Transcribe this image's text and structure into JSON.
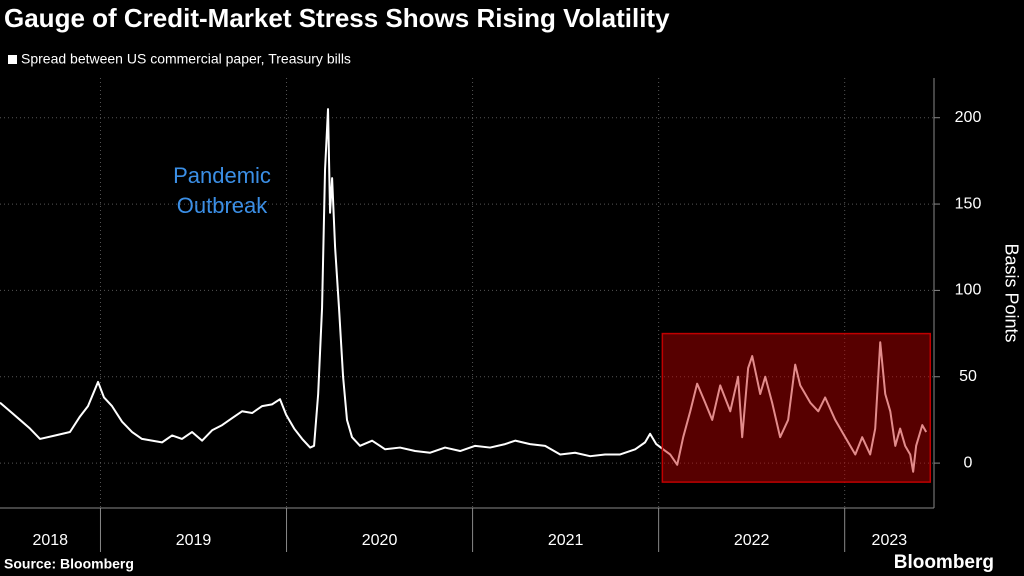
{
  "chart_data": {
    "type": "line",
    "title": "Gauge of Credit-Market Stress Shows Rising Volatility",
    "y_label": "Basis Points",
    "source": "Source: Bloomberg",
    "logo": "Bloomberg",
    "annotation": [
      "Pandemic",
      "Outbreak"
    ],
    "xlim": [
      2018.46,
      2023.48
    ],
    "xticks": [
      2019,
      2020,
      2021,
      2022,
      2023
    ],
    "year_labels": [
      2018,
      2019,
      2020,
      2021,
      2022,
      2023
    ],
    "ylim": [
      -26,
      223
    ],
    "yticks": [
      0,
      50,
      100,
      150,
      200
    ],
    "grid": true,
    "highlight": {
      "x": [
        2022.02,
        2023.46
      ],
      "y": [
        -11,
        75
      ],
      "color": "#c00000"
    },
    "x": [
      2018.46,
      2018.514,
      2018.568,
      2018.621,
      2018.675,
      2018.756,
      2018.836,
      2018.89,
      2018.933,
      2018.987,
      2019.019,
      2019.062,
      2019.116,
      2019.17,
      2019.223,
      2019.277,
      2019.331,
      2019.385,
      2019.438,
      2019.492,
      2019.546,
      2019.6,
      2019.654,
      2019.707,
      2019.761,
      2019.815,
      2019.869,
      2019.922,
      2019.965,
      2019.998,
      2020.041,
      2020.084,
      2020.127,
      2020.148,
      2020.17,
      2020.191,
      2020.207,
      2020.223,
      2020.234,
      2020.245,
      2020.261,
      2020.282,
      2020.304,
      2020.325,
      2020.352,
      2020.395,
      2020.46,
      2020.53,
      2020.61,
      2020.691,
      2020.772,
      2020.852,
      2020.933,
      2021.014,
      2021.094,
      2021.175,
      2021.229,
      2021.309,
      2021.39,
      2021.471,
      2021.551,
      2021.632,
      2021.712,
      2021.793,
      2021.874,
      2021.927,
      2021.954,
      2021.987,
      2022.024,
      2022.062,
      2022.1,
      2022.132,
      2022.17,
      2022.207,
      2022.25,
      2022.288,
      2022.331,
      2022.385,
      2022.427,
      2022.449,
      2022.481,
      2022.503,
      2022.546,
      2022.573,
      2022.61,
      2022.653,
      2022.696,
      2022.734,
      2022.761,
      2022.815,
      2022.858,
      2022.895,
      2022.949,
      2023.003,
      2023.057,
      2023.094,
      2023.137,
      2023.164,
      2023.191,
      2023.218,
      2023.245,
      2023.272,
      2023.298,
      2023.325,
      2023.352,
      2023.368,
      2023.384,
      2023.417,
      2023.438
    ],
    "series": [
      {
        "name": "Spread between US commercial paper, Treasury bills",
        "color": "#ffffff",
        "values": [
          35,
          30,
          25,
          20,
          14,
          16,
          18,
          27,
          33,
          47,
          38,
          33,
          24,
          18,
          14,
          13,
          12,
          16,
          14,
          18,
          13,
          19,
          22,
          26,
          30,
          29,
          33,
          34,
          37,
          28,
          20,
          14,
          9,
          10,
          40,
          90,
          170,
          205,
          145,
          165,
          125,
          90,
          50,
          25,
          15,
          10,
          13,
          8,
          9,
          7,
          6,
          9,
          7,
          10,
          9,
          11,
          13,
          11,
          10,
          5,
          6,
          4,
          5,
          5,
          8,
          12,
          17,
          11,
          8,
          5,
          -1,
          15,
          30,
          46,
          35,
          25,
          45,
          30,
          50,
          15,
          55,
          62,
          40,
          50,
          35,
          15,
          25,
          57,
          45,
          35,
          30,
          38,
          25,
          15,
          5,
          15,
          5,
          20,
          70,
          40,
          30,
          10,
          20,
          10,
          5,
          -5,
          10,
          22,
          18
        ]
      }
    ]
  }
}
